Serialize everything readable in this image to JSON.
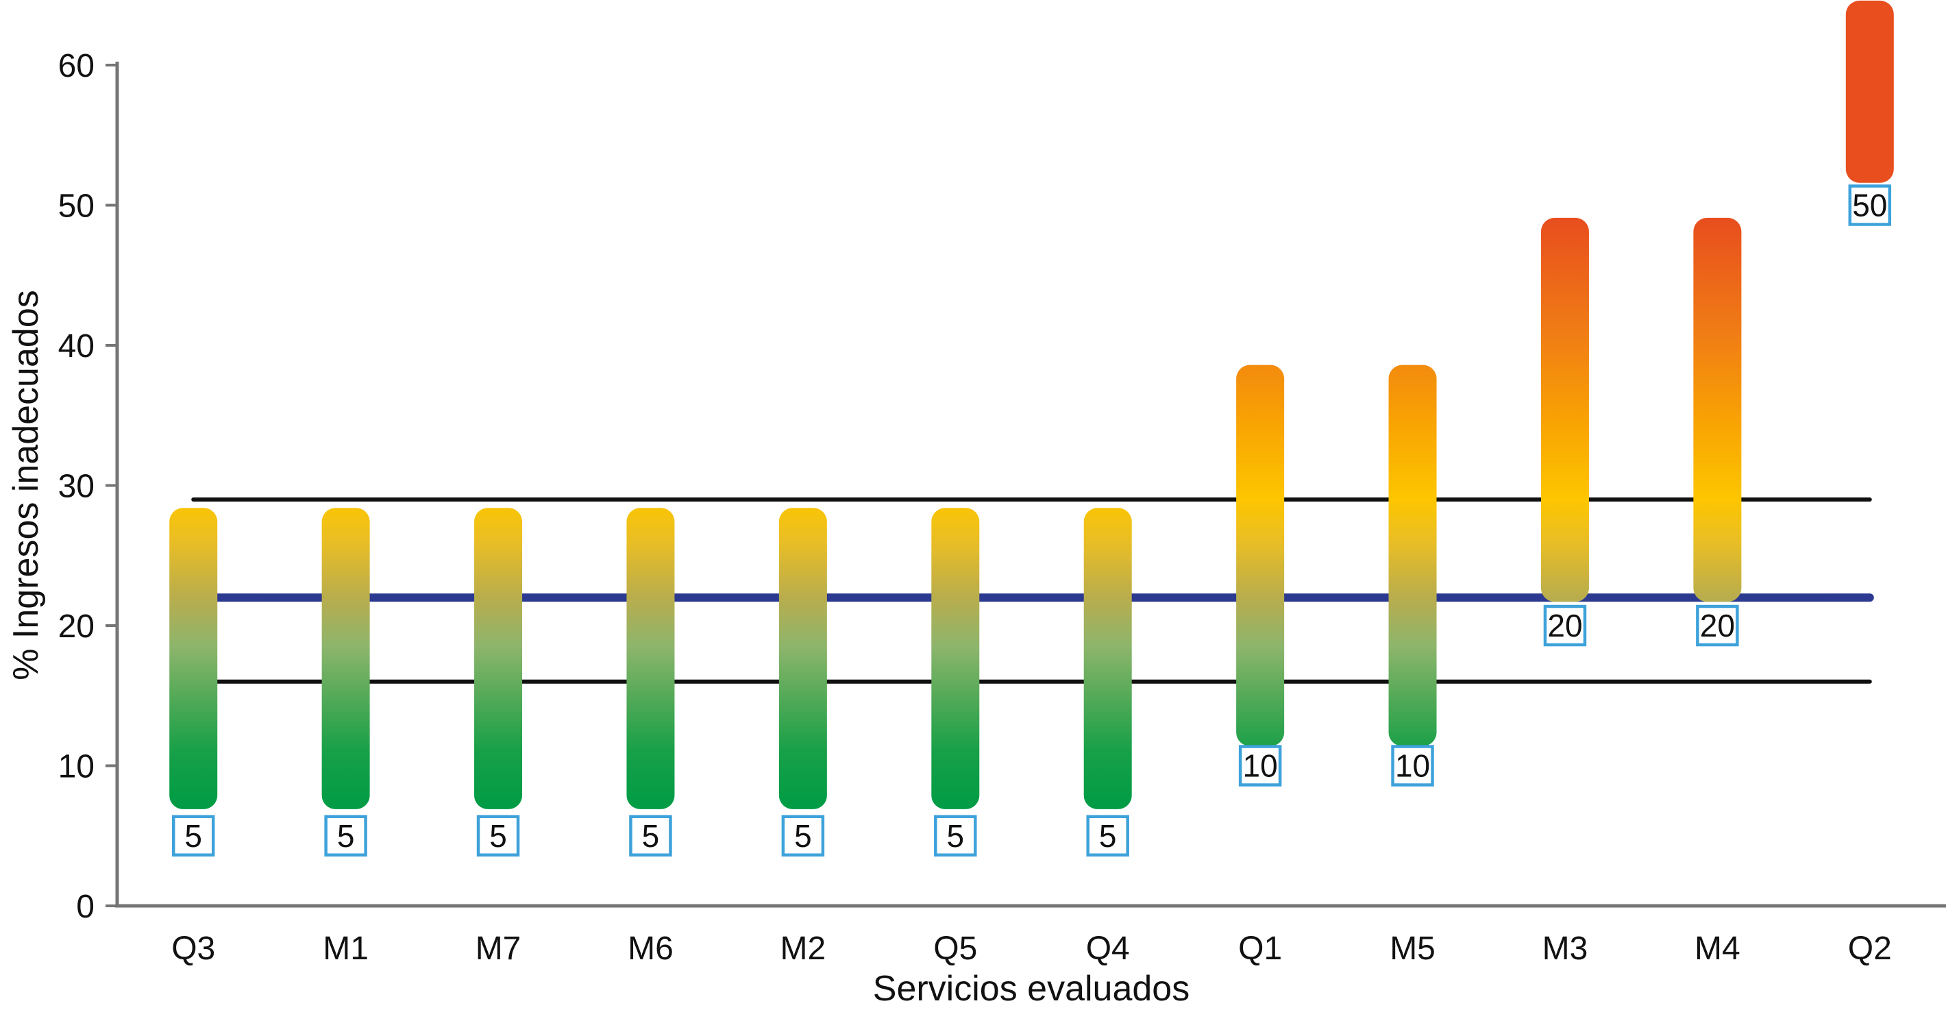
{
  "chart_data": {
    "type": "bar",
    "subtype": "floating-gradient-range-bars",
    "title": "",
    "xlabel": "Servicios evaluados",
    "ylabel": "% Ingresos inadecuados",
    "categories": [
      "Q3",
      "M1",
      "M7",
      "M6",
      "M2",
      "Q5",
      "Q4",
      "Q1",
      "M5",
      "M3",
      "M4",
      "Q2"
    ],
    "bars": [
      {
        "category": "Q3",
        "low": 6.9,
        "high": 28.4,
        "label": "5",
        "label_at": 5
      },
      {
        "category": "M1",
        "low": 6.9,
        "high": 28.4,
        "label": "5",
        "label_at": 5
      },
      {
        "category": "M7",
        "low": 6.9,
        "high": 28.4,
        "label": "5",
        "label_at": 5
      },
      {
        "category": "M6",
        "low": 6.9,
        "high": 28.4,
        "label": "5",
        "label_at": 5
      },
      {
        "category": "M2",
        "low": 6.9,
        "high": 28.4,
        "label": "5",
        "label_at": 5
      },
      {
        "category": "Q5",
        "low": 6.9,
        "high": 28.4,
        "label": "5",
        "label_at": 5
      },
      {
        "category": "Q4",
        "low": 6.9,
        "high": 28.4,
        "label": "5",
        "label_at": 5
      },
      {
        "category": "Q1",
        "low": 11.4,
        "high": 38.6,
        "label": "10",
        "label_at": 10
      },
      {
        "category": "M5",
        "low": 11.4,
        "high": 38.6,
        "label": "10",
        "label_at": 10
      },
      {
        "category": "M3",
        "low": 21.7,
        "high": 49.1,
        "label": "20",
        "label_at": 20
      },
      {
        "category": "M4",
        "low": 21.7,
        "high": 49.1,
        "label": "20",
        "label_at": 20
      },
      {
        "category": "Q2",
        "low": 51.6,
        "high": 64.6,
        "label": "50",
        "label_at": 50
      }
    ],
    "reference_lines": [
      {
        "name": "upper-limit",
        "value": 29,
        "color": "#111111",
        "width": 6
      },
      {
        "name": "center-line",
        "value": 22,
        "color": "#2B3990",
        "width": 12
      },
      {
        "name": "lower-limit",
        "value": 16,
        "color": "#111111",
        "width": 6
      }
    ],
    "y_ticks": [
      0,
      10,
      20,
      30,
      40,
      50,
      60
    ],
    "ylim": [
      0,
      64.8
    ],
    "grid": false,
    "legend": false,
    "gradient_stops": [
      {
        "value": 65,
        "color": "#E84E1E"
      },
      {
        "value": 49,
        "color": "#E84E1E"
      },
      {
        "value": 41,
        "color": "#F07C15"
      },
      {
        "value": 34,
        "color": "#F9A602"
      },
      {
        "value": 29,
        "color": "#FDC600"
      },
      {
        "value": 26,
        "color": "#E9BE25"
      },
      {
        "value": 22,
        "color": "#B9AD4D"
      },
      {
        "value": 18.5,
        "color": "#8DB56C"
      },
      {
        "value": 15,
        "color": "#55AA58"
      },
      {
        "value": 11,
        "color": "#17A048"
      },
      {
        "value": 7,
        "color": "#009C45"
      },
      {
        "value": 0,
        "color": "#009C45"
      }
    ],
    "colors": {
      "label_box_border": "#3EA2DA",
      "label_box_fill": "#FFFFFF",
      "label_text": "#111111",
      "axis_line": "#757575",
      "tick_text": "#111111",
      "background": "#FFFFFF"
    }
  }
}
